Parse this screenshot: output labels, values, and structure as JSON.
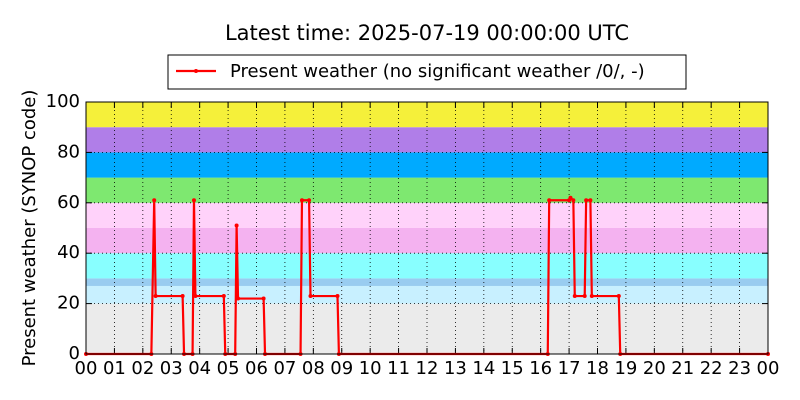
{
  "chart_data": {
    "type": "line",
    "title": "Latest time: 2025-07-19 00:00:00 UTC",
    "y_label": "Present weather (SYNOP code)",
    "x": [
      0,
      2.3,
      2.4,
      2.45,
      3.4,
      3.45,
      3.75,
      3.8,
      3.85,
      4.85,
      4.9,
      5.25,
      5.3,
      5.35,
      6.25,
      6.3,
      7.55,
      7.6,
      7.85,
      7.9,
      8.85,
      8.9,
      16.25,
      16.3,
      17.0,
      17.05,
      17.15,
      17.2,
      17.55,
      17.6,
      17.75,
      17.8,
      18.75,
      18.8,
      24
    ],
    "series": [
      {
        "name": "Present weather (no significant weather /0/, -)",
        "color": "#ff0000",
        "values": [
          0,
          0,
          61,
          23,
          23,
          0,
          0,
          61,
          23,
          23,
          0,
          0,
          51,
          22,
          22,
          0,
          0,
          61,
          61,
          23,
          23,
          0,
          0,
          61,
          61,
          62,
          61,
          23,
          23,
          61,
          61,
          23,
          23,
          0,
          0
        ]
      }
    ],
    "xlim": [
      0,
      24
    ],
    "xticks": [
      {
        "value": 0,
        "label": "00"
      },
      {
        "value": 1,
        "label": "01"
      },
      {
        "value": 2,
        "label": "02"
      },
      {
        "value": 3,
        "label": "03"
      },
      {
        "value": 4,
        "label": "04"
      },
      {
        "value": 5,
        "label": "05"
      },
      {
        "value": 6,
        "label": "06"
      },
      {
        "value": 7,
        "label": "07"
      },
      {
        "value": 8,
        "label": "08"
      },
      {
        "value": 9,
        "label": "09"
      },
      {
        "value": 10,
        "label": "10"
      },
      {
        "value": 11,
        "label": "11"
      },
      {
        "value": 12,
        "label": "12"
      },
      {
        "value": 13,
        "label": "13"
      },
      {
        "value": 14,
        "label": "14"
      },
      {
        "value": 15,
        "label": "15"
      },
      {
        "value": 16,
        "label": "16"
      },
      {
        "value": 17,
        "label": "17"
      },
      {
        "value": 18,
        "label": "18"
      },
      {
        "value": 19,
        "label": "19"
      },
      {
        "value": 20,
        "label": "20"
      },
      {
        "value": 21,
        "label": "21"
      },
      {
        "value": 22,
        "label": "22"
      },
      {
        "value": 23,
        "label": "23"
      },
      {
        "value": 24,
        "label": "00"
      }
    ],
    "ylim": [
      0,
      100
    ],
    "yticks": [
      0,
      20,
      40,
      60,
      80,
      100
    ],
    "grid": true,
    "bands": [
      {
        "from": 0,
        "to": 20,
        "color": "#ebebeb"
      },
      {
        "from": 20,
        "to": 27,
        "color": "#c8f0ff"
      },
      {
        "from": 27,
        "to": 30,
        "color": "#99ccf0"
      },
      {
        "from": 30,
        "to": 40,
        "color": "#88ffff"
      },
      {
        "from": 40,
        "to": 50,
        "color": "#f4b2f0"
      },
      {
        "from": 50,
        "to": 60,
        "color": "#ffd2fa"
      },
      {
        "from": 60,
        "to": 70,
        "color": "#7ee870"
      },
      {
        "from": 70,
        "to": 80,
        "color": "#00aaff"
      },
      {
        "from": 80,
        "to": 90,
        "color": "#b07ee8"
      },
      {
        "from": 90,
        "to": 100,
        "color": "#f5f03a"
      }
    ],
    "legend_position": "top"
  }
}
